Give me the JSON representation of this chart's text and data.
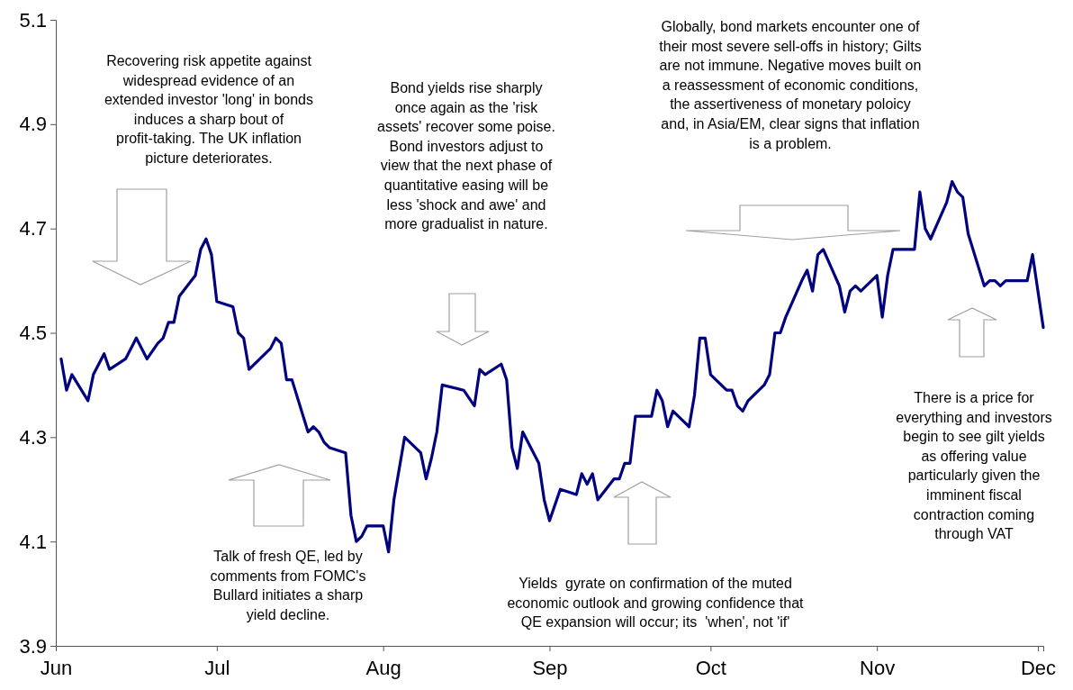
{
  "chart_data": {
    "type": "line",
    "x": [
      "--06-02",
      "--06-03",
      "--06-04",
      "--06-07",
      "--06-08",
      "--06-10",
      "--06-11",
      "--06-14",
      "--06-16",
      "--06-18",
      "--06-20",
      "--06-21",
      "--06-22",
      "--06-23",
      "--06-24",
      "--06-27",
      "--06-28",
      "--06-29",
      "--06-30",
      "--07-01",
      "--07-04",
      "--07-05",
      "--07-06",
      "--07-07",
      "--07-11",
      "--07-12",
      "--07-13",
      "--07-14",
      "--07-15",
      "--07-18",
      "--07-19",
      "--07-20",
      "--07-21",
      "--07-22",
      "--07-25",
      "--07-26",
      "--07-27",
      "--07-28",
      "--07-29",
      "--08-01",
      "--08-02",
      "--08-03",
      "--08-05",
      "--08-08",
      "--08-09",
      "--08-10",
      "--08-11",
      "--08-12",
      "--08-16",
      "--08-18",
      "--08-19",
      "--08-20",
      "--08-23",
      "--08-24",
      "--08-25",
      "--08-26",
      "--08-27",
      "--08-30",
      "--08-31",
      "--09-01",
      "--09-03",
      "--09-06",
      "--09-07",
      "--09-08",
      "--09-09",
      "--09-10",
      "--09-13",
      "--09-14",
      "--09-15",
      "--09-16",
      "--09-17",
      "--09-20",
      "--09-21",
      "--09-22",
      "--09-23",
      "--09-24",
      "--09-27",
      "--09-28",
      "--09-29",
      "--09-30",
      "--10-01",
      "--10-04",
      "--10-05",
      "--10-06",
      "--10-07",
      "--10-08",
      "--10-11",
      "--10-12",
      "--10-13",
      "--10-14",
      "--10-15",
      "--10-18",
      "--10-19",
      "--10-20",
      "--10-21",
      "--10-22",
      "--10-25",
      "--10-26",
      "--10-27",
      "--10-28",
      "--10-29",
      "--11-01",
      "--11-02",
      "--11-03",
      "--11-04",
      "--11-05",
      "--11-08",
      "--11-09",
      "--11-10",
      "--11-11",
      "--11-14",
      "--11-15",
      "--11-16",
      "--11-17",
      "--11-18",
      "--11-21",
      "--11-22",
      "--11-23",
      "--11-24",
      "--11-25",
      "--11-29",
      "--11-30",
      "--12-02"
    ],
    "series": [
      {
        "color": "#000080",
        "values": [
          4.45,
          4.39,
          4.42,
          4.37,
          4.42,
          4.46,
          4.43,
          4.45,
          4.49,
          4.45,
          4.48,
          4.49,
          4.52,
          4.52,
          4.57,
          4.61,
          4.66,
          4.68,
          4.65,
          4.56,
          4.55,
          4.5,
          4.49,
          4.43,
          4.47,
          4.49,
          4.48,
          4.41,
          4.41,
          4.31,
          4.32,
          4.31,
          4.29,
          4.28,
          4.27,
          4.15,
          4.1,
          4.11,
          4.13,
          4.13,
          4.08,
          4.18,
          4.3,
          4.27,
          4.22,
          4.26,
          4.31,
          4.4,
          4.39,
          4.36,
          4.43,
          4.42,
          4.44,
          4.41,
          4.28,
          4.24,
          4.31,
          4.25,
          4.18,
          4.14,
          4.2,
          4.19,
          4.23,
          4.21,
          4.23,
          4.18,
          4.22,
          4.22,
          4.25,
          4.25,
          4.34,
          4.34,
          4.39,
          4.37,
          4.32,
          4.35,
          4.32,
          4.38,
          4.49,
          4.49,
          4.42,
          4.39,
          4.39,
          4.36,
          4.35,
          4.37,
          4.4,
          4.42,
          4.5,
          4.5,
          4.53,
          4.6,
          4.62,
          4.58,
          4.65,
          4.66,
          4.59,
          4.54,
          4.58,
          4.59,
          4.58,
          4.61,
          4.53,
          4.61,
          4.66,
          4.66,
          4.66,
          4.77,
          4.7,
          4.68,
          4.75,
          4.79,
          4.77,
          4.76,
          4.69,
          4.59,
          4.6,
          4.6,
          4.59,
          4.6,
          4.6,
          4.65,
          4.51
        ]
      }
    ],
    "xlim": [
      "--06-01",
      "--12-02"
    ],
    "xticks": [
      {
        "value": "--06-01",
        "label": "Jun"
      },
      {
        "value": "--07-01",
        "label": "Jul"
      },
      {
        "value": "--08-01",
        "label": "Aug"
      },
      {
        "value": "--09-01",
        "label": "Sep"
      },
      {
        "value": "--10-01",
        "label": "Oct"
      },
      {
        "value": "--11-01",
        "label": "Nov"
      },
      {
        "value": "--12-01",
        "label": "Dec"
      }
    ],
    "ylim": [
      3.9,
      5.1
    ],
    "yticks": [
      3.9,
      4.1,
      4.3,
      4.5,
      4.7,
      4.9,
      5.1
    ],
    "grid": false,
    "marker": "none",
    "line_style": "solid",
    "annotations": [
      "Recovering risk appetite against widespread evidence of an extended investor 'long' in bonds induces a sharp bout of profit-taking. The UK inflation picture deteriorates.",
      "Bond yields rise sharply once again as the 'risk assets' recover some poise. Bond investors adjust to view that the next phase of quantitative easing will be less 'shock and awe' and more gradualist in nature.",
      "Globally, bond markets encounter one of their most severe sell-offs in history; Gilts are not immune. Negative moves built on a reassessment of economic conditions, the assertiveness of monetary poloicy and, in Asia/EM, clear signs that inflation is a problem.",
      "Talk of fresh QE, led by comments from FOMC's Bullard initiates a sharp yield decline.",
      "Yields  gyrate on confirmation of the muted economic outlook and growing confidence that QE expansion will occur; its  'when', not 'if'",
      "There is a price for everything and investors begin to see gilt yields as offering value particularly given the imminent fiscal contraction coming through VAT"
    ]
  }
}
